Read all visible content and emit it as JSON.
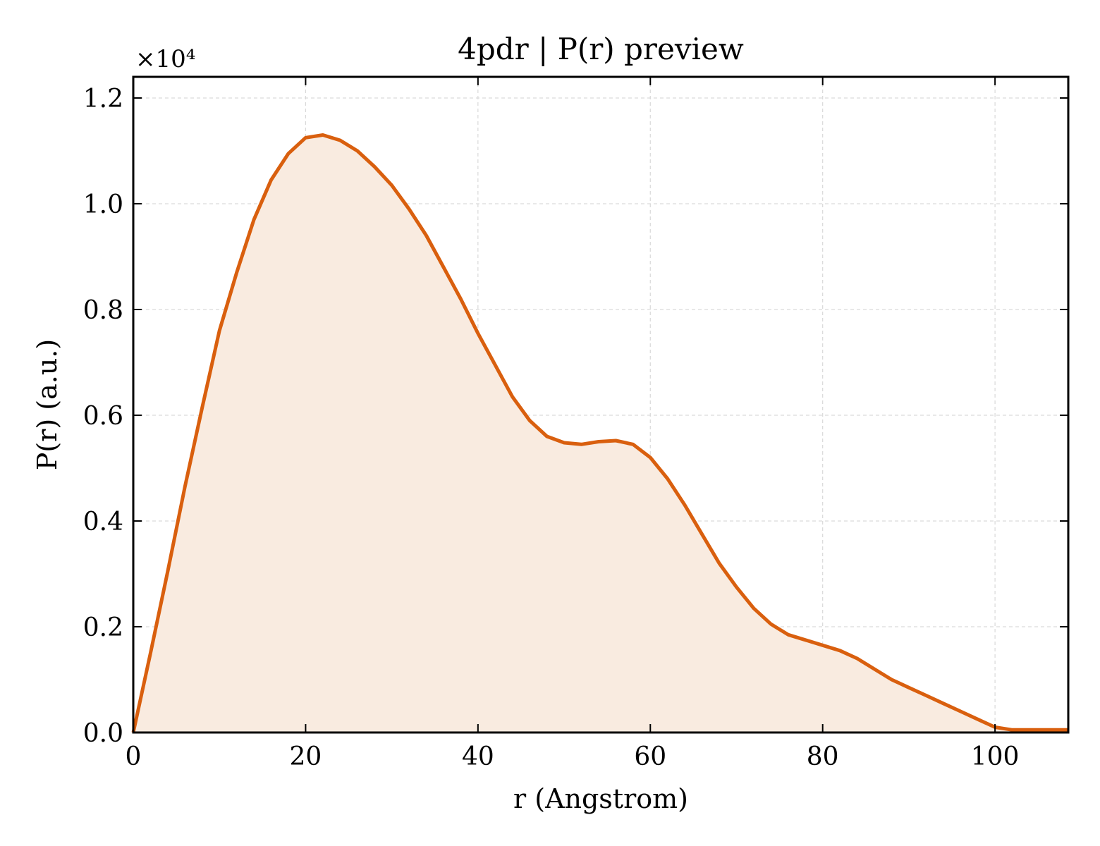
{
  "chart_data": {
    "type": "area",
    "title": "4pdr | P(r) preview",
    "xlabel": "r (Angstrom)",
    "ylabel": "P(r) (a.u.)",
    "y_offset_label": "×10⁴",
    "xlim": [
      0,
      108.5
    ],
    "ylim": [
      0,
      12400
    ],
    "x_ticks": [
      0,
      20,
      40,
      60,
      80,
      100
    ],
    "x_tick_labels": [
      "0",
      "20",
      "40",
      "60",
      "80",
      "100"
    ],
    "y_ticks": [
      0,
      2000,
      4000,
      6000,
      8000,
      10000,
      12000
    ],
    "y_tick_labels": [
      "0.0",
      "0.2",
      "0.4",
      "0.6",
      "0.8",
      "1.0",
      "1.2"
    ],
    "grid": true,
    "series": [
      {
        "color": "#d95f0e",
        "fill_color": "#f9ebe0",
        "x": [
          0,
          2,
          4,
          6,
          8,
          10,
          12,
          14,
          16,
          18,
          20,
          22,
          24,
          26,
          28,
          30,
          32,
          34,
          36,
          38,
          40,
          42,
          44,
          46,
          48,
          50,
          52,
          54,
          56,
          58,
          60,
          62,
          64,
          66,
          68,
          70,
          72,
          74,
          76,
          78,
          80,
          82,
          84,
          86,
          88,
          90,
          92,
          94,
          96,
          98,
          100,
          102,
          104,
          106,
          108.5
        ],
        "y": [
          0,
          1500,
          3050,
          4650,
          6150,
          7600,
          8700,
          9700,
          10450,
          10950,
          11250,
          11300,
          11200,
          11000,
          10700,
          10350,
          9900,
          9400,
          8800,
          8200,
          7550,
          6950,
          6350,
          5900,
          5600,
          5480,
          5450,
          5500,
          5520,
          5450,
          5200,
          4800,
          4300,
          3750,
          3200,
          2750,
          2350,
          2050,
          1850,
          1750,
          1650,
          1550,
          1400,
          1200,
          1000,
          850,
          700,
          550,
          400,
          250,
          100,
          50,
          50,
          50,
          50
        ]
      }
    ]
  }
}
